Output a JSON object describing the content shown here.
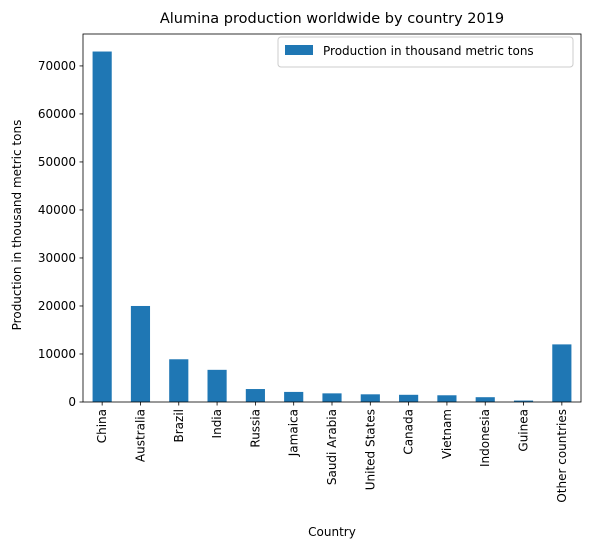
{
  "chart_data": {
    "type": "bar",
    "title": "Alumina production worldwide by country 2019",
    "xlabel": "Country",
    "ylabel": "Production in thousand metric tons",
    "categories": [
      "China",
      "Australia",
      "Brazil",
      "India",
      "Russia",
      "Jamaica",
      "Saudi Arabia",
      "United States",
      "Canada",
      "Vietnam",
      "Indonesia",
      "Guinea",
      "Other countries"
    ],
    "series": [
      {
        "name": "Production in thousand metric tons",
        "values": [
          73000,
          20000,
          8900,
          6700,
          2700,
          2100,
          1800,
          1600,
          1500,
          1400,
          1000,
          300,
          12000
        ],
        "color": "#1f77b4"
      }
    ],
    "ylim": [
      0,
      76650
    ],
    "yticks": [
      0,
      10000,
      20000,
      30000,
      40000,
      50000,
      60000,
      70000
    ],
    "legend": "top-right",
    "grid": false
  }
}
